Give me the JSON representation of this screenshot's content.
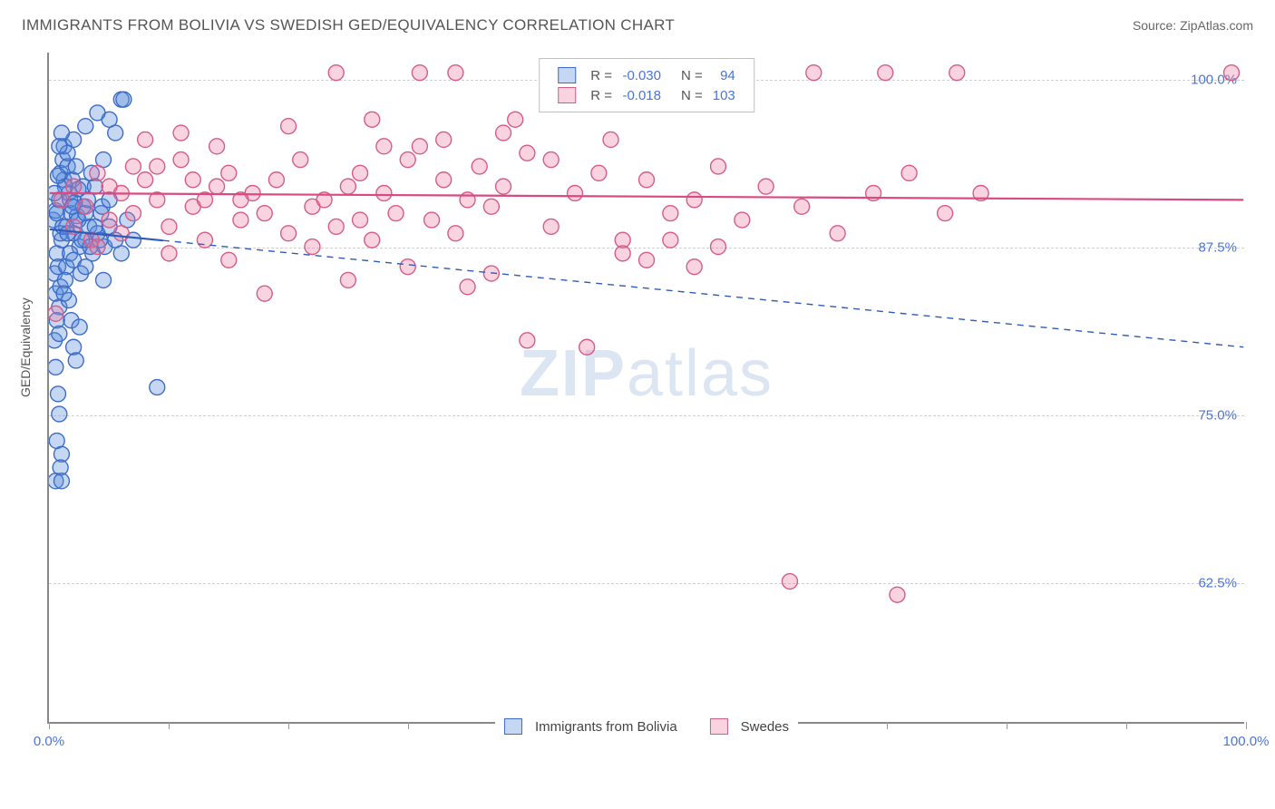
{
  "title": "IMMIGRANTS FROM BOLIVIA VS SWEDISH GED/EQUIVALENCY CORRELATION CHART",
  "source": "Source: ZipAtlas.com",
  "watermark_a": "ZIP",
  "watermark_b": "atlas",
  "y_axis_label": "GED/Equivalency",
  "legend_r_label": "R =",
  "legend_n_label": "N =",
  "series": [
    {
      "name": "Immigrants from Bolivia",
      "r": "-0.030",
      "n": "94",
      "fill": "rgba(90,140,220,0.35)",
      "stroke": "#3d6cc8",
      "line_stroke": "#2f5bb8",
      "trend": {
        "x1": 0.0,
        "y1": 88.8,
        "x2": 100.0,
        "y2": 80.0
      },
      "solid_x_end": 9.5,
      "points": [
        [
          0.3,
          89.5
        ],
        [
          0.5,
          90.2
        ],
        [
          0.8,
          91.0
        ],
        [
          1.0,
          88.0
        ],
        [
          1.2,
          92.5
        ],
        [
          0.6,
          87.0
        ],
        [
          1.4,
          89.0
        ],
        [
          0.9,
          93.0
        ],
        [
          1.6,
          91.5
        ],
        [
          0.4,
          85.5
        ],
        [
          1.8,
          90.0
        ],
        [
          2.0,
          88.5
        ],
        [
          1.1,
          94.0
        ],
        [
          2.3,
          89.8
        ],
        [
          0.7,
          86.0
        ],
        [
          2.5,
          87.5
        ],
        [
          1.3,
          92.0
        ],
        [
          2.8,
          90.5
        ],
        [
          0.5,
          84.0
        ],
        [
          3.0,
          88.0
        ],
        [
          1.5,
          93.5
        ],
        [
          3.3,
          89.0
        ],
        [
          0.8,
          83.0
        ],
        [
          3.6,
          87.0
        ],
        [
          1.7,
          91.0
        ],
        [
          4.0,
          88.5
        ],
        [
          0.6,
          82.0
        ],
        [
          4.3,
          90.0
        ],
        [
          1.9,
          92.5
        ],
        [
          4.6,
          87.5
        ],
        [
          0.4,
          80.5
        ],
        [
          5.0,
          89.0
        ],
        [
          2.1,
          90.8
        ],
        [
          0.9,
          84.5
        ],
        [
          5.5,
          88.0
        ],
        [
          2.4,
          89.5
        ],
        [
          1.2,
          95.0
        ],
        [
          6.0,
          87.0
        ],
        [
          2.7,
          88.0
        ],
        [
          0.5,
          78.5
        ],
        [
          6.5,
          89.5
        ],
        [
          3.0,
          90.0
        ],
        [
          1.4,
          86.0
        ],
        [
          7.0,
          88.0
        ],
        [
          3.4,
          87.5
        ],
        [
          0.7,
          76.5
        ],
        [
          3.8,
          89.0
        ],
        [
          1.6,
          83.5
        ],
        [
          4.2,
          88.0
        ],
        [
          0.8,
          75.0
        ],
        [
          4.5,
          85.0
        ],
        [
          1.8,
          82.0
        ],
        [
          2.0,
          80.0
        ],
        [
          0.6,
          73.0
        ],
        [
          2.2,
          79.0
        ],
        [
          1.0,
          72.0
        ],
        [
          2.5,
          81.5
        ],
        [
          0.9,
          71.0
        ],
        [
          0.5,
          70.0
        ],
        [
          1.0,
          70.0
        ],
        [
          6.0,
          98.5
        ],
        [
          6.2,
          98.5
        ],
        [
          5.5,
          96.0
        ],
        [
          5.0,
          97.0
        ],
        [
          4.0,
          97.5
        ],
        [
          3.0,
          96.5
        ],
        [
          2.0,
          95.5
        ],
        [
          1.5,
          94.5
        ],
        [
          1.0,
          96.0
        ],
        [
          0.8,
          95.0
        ],
        [
          9.0,
          77.0
        ],
        [
          4.5,
          94.0
        ],
        [
          3.5,
          93.0
        ],
        [
          2.8,
          92.0
        ],
        [
          2.2,
          93.5
        ],
        [
          1.7,
          87.0
        ],
        [
          1.3,
          85.0
        ],
        [
          0.9,
          88.5
        ],
        [
          0.6,
          90.0
        ],
        [
          0.4,
          91.5
        ],
        [
          2.0,
          86.5
        ],
        [
          2.6,
          85.5
        ],
        [
          3.2,
          91.0
        ],
        [
          3.8,
          92.0
        ],
        [
          4.4,
          90.5
        ],
        [
          5.0,
          91.0
        ],
        [
          1.1,
          89.0
        ],
        [
          1.9,
          90.5
        ],
        [
          2.4,
          91.8
        ],
        [
          0.7,
          92.8
        ],
        [
          1.5,
          88.5
        ],
        [
          3.0,
          86.0
        ],
        [
          0.8,
          81.0
        ],
        [
          1.2,
          84.0
        ]
      ]
    },
    {
      "name": "Swedes",
      "r": "-0.018",
      "n": "103",
      "fill": "rgba(235,120,160,0.32)",
      "stroke": "#d65c88",
      "line_stroke": "#d94a80",
      "trend": {
        "x1": 0.0,
        "y1": 91.5,
        "x2": 100.0,
        "y2": 91.0
      },
      "solid_x_end": 100.0,
      "points": [
        [
          1.0,
          91.0
        ],
        [
          2.0,
          92.0
        ],
        [
          3.0,
          90.5
        ],
        [
          4.0,
          93.0
        ],
        [
          5.0,
          89.5
        ],
        [
          6.0,
          91.5
        ],
        [
          7.0,
          90.0
        ],
        [
          8.0,
          92.5
        ],
        [
          9.0,
          93.5
        ],
        [
          10.0,
          89.0
        ],
        [
          11.0,
          94.0
        ],
        [
          12.0,
          90.5
        ],
        [
          13.0,
          91.0
        ],
        [
          14.0,
          92.0
        ],
        [
          3.5,
          88.0
        ],
        [
          15.0,
          93.0
        ],
        [
          16.0,
          89.5
        ],
        [
          17.0,
          91.5
        ],
        [
          18.0,
          90.0
        ],
        [
          19.0,
          92.5
        ],
        [
          20.0,
          88.5
        ],
        [
          21.0,
          94.0
        ],
        [
          22.0,
          90.5
        ],
        [
          23.0,
          91.0
        ],
        [
          24.0,
          89.0
        ],
        [
          25.0,
          92.0
        ],
        [
          26.0,
          93.0
        ],
        [
          27.0,
          88.0
        ],
        [
          28.0,
          91.5
        ],
        [
          29.0,
          90.0
        ],
        [
          30.0,
          94.0
        ],
        [
          31.0,
          95.0
        ],
        [
          32.0,
          89.5
        ],
        [
          33.0,
          92.5
        ],
        [
          34.0,
          88.5
        ],
        [
          35.0,
          91.0
        ],
        [
          36.0,
          93.5
        ],
        [
          37.0,
          90.5
        ],
        [
          38.0,
          92.0
        ],
        [
          40.0,
          94.5
        ],
        [
          42.0,
          89.0
        ],
        [
          44.0,
          91.5
        ],
        [
          46.0,
          93.0
        ],
        [
          48.0,
          88.0
        ],
        [
          50.0,
          92.5
        ],
        [
          52.0,
          90.0
        ],
        [
          54.0,
          91.0
        ],
        [
          56.0,
          93.5
        ],
        [
          58.0,
          89.5
        ],
        [
          60.0,
          92.0
        ],
        [
          63.0,
          90.5
        ],
        [
          66.0,
          88.5
        ],
        [
          69.0,
          91.5
        ],
        [
          72.0,
          93.0
        ],
        [
          75.0,
          90.0
        ],
        [
          78.0,
          91.5
        ],
        [
          24.0,
          100.5
        ],
        [
          31.0,
          100.5
        ],
        [
          34.0,
          100.5
        ],
        [
          55.0,
          100.5
        ],
        [
          64.0,
          100.5
        ],
        [
          70.0,
          100.5
        ],
        [
          76.0,
          100.5
        ],
        [
          99.0,
          100.5
        ],
        [
          8.0,
          95.5
        ],
        [
          11.0,
          96.0
        ],
        [
          14.0,
          95.0
        ],
        [
          20.0,
          96.5
        ],
        [
          27.0,
          97.0
        ],
        [
          33.0,
          95.5
        ],
        [
          38.0,
          96.0
        ],
        [
          42.0,
          94.0
        ],
        [
          47.0,
          95.5
        ],
        [
          45.0,
          80.0
        ],
        [
          40.0,
          80.5
        ],
        [
          18.0,
          84.0
        ],
        [
          25.0,
          85.0
        ],
        [
          30.0,
          86.0
        ],
        [
          35.0,
          84.5
        ],
        [
          37.0,
          85.5
        ],
        [
          48.0,
          87.0
        ],
        [
          50.0,
          86.5
        ],
        [
          52.0,
          88.0
        ],
        [
          54.0,
          86.0
        ],
        [
          56.0,
          87.5
        ],
        [
          62.0,
          62.5
        ],
        [
          71.0,
          61.5
        ],
        [
          0.5,
          82.5
        ],
        [
          2.0,
          89.0
        ],
        [
          4.0,
          87.5
        ],
        [
          6.0,
          88.5
        ],
        [
          10.0,
          87.0
        ],
        [
          12.0,
          92.5
        ],
        [
          15.0,
          86.5
        ],
        [
          16.0,
          91.0
        ],
        [
          22.0,
          87.5
        ],
        [
          26.0,
          89.5
        ],
        [
          5.0,
          92.0
        ],
        [
          7.0,
          93.5
        ],
        [
          9.0,
          91.0
        ],
        [
          13.0,
          88.0
        ],
        [
          28.0,
          95.0
        ],
        [
          39.0,
          97.0
        ]
      ]
    }
  ],
  "chart": {
    "xmin": 0,
    "xmax": 100,
    "ymin": 52,
    "ymax": 102,
    "y_ticks": [
      62.5,
      75.0,
      87.5,
      100.0
    ],
    "y_tick_labels": [
      "62.5%",
      "75.0%",
      "87.5%",
      "100.0%"
    ],
    "x_ticks": [
      0,
      10,
      20,
      30,
      40,
      50,
      60,
      70,
      80,
      90,
      100
    ],
    "x_tick_labels": {
      "first": "0.0%",
      "last": "100.0%"
    },
    "marker_radius": 8.5,
    "marker_stroke_width": 1.4,
    "trend_width": 2.2,
    "grid_color": "#d0d0d0",
    "background": "#ffffff",
    "axis_color": "#888888",
    "text_color": "#555555",
    "tick_text_color": "#4a74d8"
  }
}
